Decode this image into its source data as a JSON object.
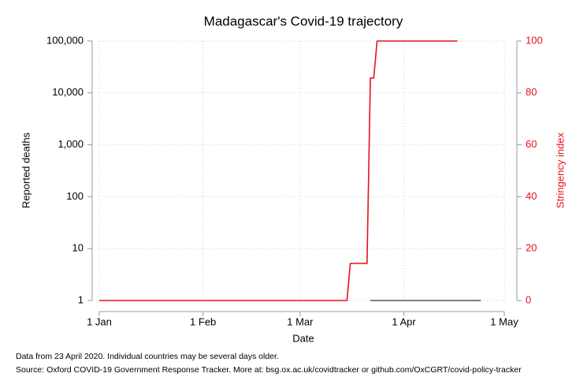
{
  "chart_data": {
    "type": "line",
    "title": "Madagascar's Covid-19 trajectory",
    "x_label": "Date",
    "y_label": "Reported deaths",
    "y2_label": "Stringency index",
    "notes": [
      "Data from 23 April 2020. Individual countries may be several days older.",
      "Source: Oxford COVID-19 Government Response Tracker. More at: bsg.ox.ac.uk/covidtracker or github.com/OxCGRT/covid-policy-tracker"
    ],
    "xlim": [
      "2020-01-01",
      "2020-05-01"
    ],
    "xticks": [
      {
        "value": "2020-01-01",
        "label": "1 Jan"
      },
      {
        "value": "2020-02-01",
        "label": "1 Feb"
      },
      {
        "value": "2020-03-01",
        "label": "1 Mar"
      },
      {
        "value": "2020-04-01",
        "label": "1 Apr"
      },
      {
        "value": "2020-05-01",
        "label": "1 May"
      }
    ],
    "ylim": [
      1,
      100000
    ],
    "log_y": true,
    "yticks": [
      1,
      10,
      100,
      {
        "value": 1000,
        "label": "1,000"
      },
      {
        "value": 10000,
        "label": "10,000"
      },
      {
        "value": 100000,
        "label": "100,000"
      }
    ],
    "y2lim": [
      0,
      100
    ],
    "y2ticks": [
      0,
      20,
      40,
      60,
      80,
      100
    ],
    "y2_color": "#e8101a",
    "grid": true,
    "series": [
      {
        "name": "Stringency index",
        "axis": "y2",
        "color": "#e8101a",
        "x": [
          "2020-01-01",
          "2020-03-15",
          "2020-03-16",
          "2020-03-21",
          "2020-03-22",
          "2020-03-23",
          "2020-03-24",
          "2020-04-17"
        ],
        "values": [
          0,
          0,
          14.29,
          14.29,
          85.71,
          85.71,
          100,
          100
        ]
      },
      {
        "name": "Reported deaths",
        "color": "#555555",
        "x": [
          "2020-03-22",
          "2020-04-24"
        ],
        "values": [
          1,
          1
        ]
      }
    ]
  }
}
